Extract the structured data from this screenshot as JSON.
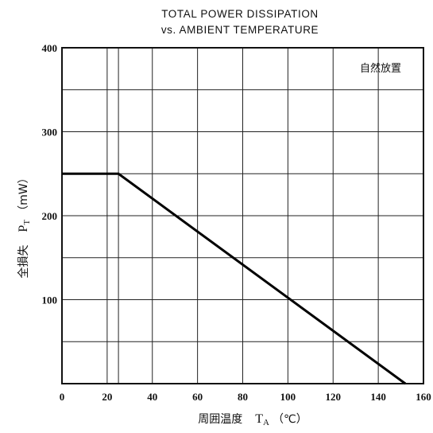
{
  "chart_data": {
    "type": "line",
    "title": "TOTAL POWER DISSIPATION",
    "subtitle": "vs. AMBIENT TEMPERATURE",
    "xlabel": "周囲温度　T_A（℃）",
    "ylabel": "全損失　P_T（mW）",
    "xlabel_parts": {
      "prefix": "周囲温度",
      "symbol": "T",
      "sub": "A",
      "unit": "（℃）"
    },
    "ylabel_parts": {
      "prefix": "全損失",
      "symbol": "P",
      "sub": "T",
      "unit": "（mW）"
    },
    "xlim": [
      0,
      160
    ],
    "ylim": [
      0,
      400
    ],
    "xticks": [
      0,
      20,
      40,
      60,
      80,
      100,
      120,
      140,
      160
    ],
    "yticks": [
      100,
      200,
      300,
      400
    ],
    "xgrid": [
      0,
      20,
      25,
      40,
      60,
      80,
      100,
      120,
      140,
      160
    ],
    "ygrid": [
      50,
      100,
      150,
      200,
      250,
      300,
      350,
      400
    ],
    "grid": true,
    "annotation": "自然放置",
    "series": [
      {
        "x": [
          0,
          25,
          152
        ],
        "y": [
          250,
          250,
          0
        ]
      }
    ]
  }
}
